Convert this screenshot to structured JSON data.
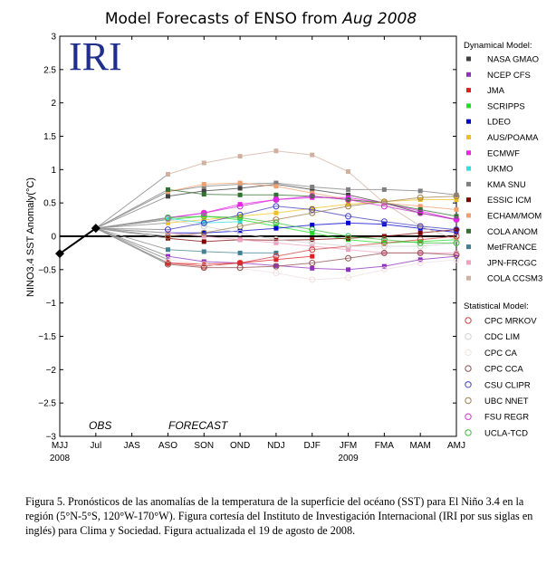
{
  "chart_data": {
    "type": "line",
    "title": "Model Forecasts of ENSO from",
    "title_month": "Aug 2008",
    "ylabel": "NINO3.4 SST Anomaly(°C)",
    "ylim": [
      -3,
      3
    ],
    "yticks": [
      "−3",
      "−2.5",
      "−2",
      "−1.5",
      "−1",
      "−0.5",
      "0",
      "0.5",
      "1",
      "1.5",
      "2",
      "2.5",
      "3"
    ],
    "categories": [
      "MJJ",
      "Jul",
      "JAS",
      "ASO",
      "SON",
      "OND",
      "NDJ",
      "DJF",
      "JFM",
      "FMA",
      "MAM",
      "AMJ"
    ],
    "year_labels": [
      {
        "label": "2008",
        "at": 0
      },
      {
        "label": "2009",
        "at": 8
      }
    ],
    "obs_label": "OBS",
    "forecast_label": "FORECAST",
    "grid": false,
    "legend_position": "right",
    "observed": [
      -0.26,
      0.12
    ],
    "dynamical_title": "Dynamical Model:",
    "statistical_title": "Statistical Model:",
    "dynamical": [
      {
        "name": "NASA GMAO",
        "color": "#404040",
        "values": [
          0.6,
          0.68,
          0.72,
          0.78,
          0.7,
          0.62,
          0.5,
          0.35,
          0.25
        ]
      },
      {
        "name": "NCEP CFS",
        "color": "#9030c0",
        "values": [
          -0.3,
          -0.38,
          -0.4,
          -0.44,
          -0.48,
          -0.5,
          -0.45,
          -0.35,
          -0.3
        ]
      },
      {
        "name": "JMA",
        "color": "#e02020",
        "values": [
          -0.4,
          -0.42,
          -0.4,
          -0.35,
          -0.3,
          null,
          null,
          null,
          null
        ]
      },
      {
        "name": "SCRIPPS",
        "color": "#20e020",
        "values": [
          0.25,
          0.3,
          0.25,
          0.15,
          0.05,
          -0.05,
          -0.1,
          -0.08,
          -0.05
        ]
      },
      {
        "name": "LDEO",
        "color": "#0000d0",
        "values": [
          0.05,
          0.05,
          0.08,
          0.12,
          0.17,
          0.2,
          0.18,
          0.12,
          0.06
        ]
      },
      {
        "name": "AUS/POAMA",
        "color": "#f0c020",
        "values": [
          0.2,
          0.25,
          0.3,
          0.35,
          0.42,
          0.48,
          0.52,
          0.55,
          0.55
        ]
      },
      {
        "name": "ECMWF",
        "color": "#f020f0",
        "values": [
          0.28,
          0.35,
          0.48,
          0.55,
          0.58,
          0.58,
          0.5,
          0.38,
          0.25
        ]
      },
      {
        "name": "UKMO",
        "color": "#30e0e0",
        "values": [
          0.27,
          0.2,
          0.22,
          null,
          null,
          null,
          null,
          null,
          null
        ]
      },
      {
        "name": "KMA SNU",
        "color": "#808080",
        "values": [
          0.67,
          0.75,
          0.78,
          0.8,
          0.74,
          0.7,
          0.7,
          0.68,
          0.62
        ]
      },
      {
        "name": "ESSIC ICM",
        "color": "#800000",
        "values": [
          -0.03,
          -0.08,
          -0.05,
          -0.06,
          -0.05,
          -0.03,
          0.0,
          0.05,
          0.1
        ]
      },
      {
        "name": "ECHAM/MOM",
        "color": "#f0a070",
        "values": [
          0.67,
          0.78,
          0.8,
          0.75,
          0.65,
          0.55,
          0.5,
          0.45,
          0.4
        ]
      },
      {
        "name": "COLA ANOM",
        "color": "#307030",
        "values": [
          0.7,
          0.63,
          0.62,
          0.62,
          0.6,
          0.55,
          0.5,
          0.4,
          0.3
        ]
      },
      {
        "name": "MetFRANCE",
        "color": "#408090",
        "values": [
          -0.2,
          -0.23,
          -0.25,
          -0.25,
          null,
          null,
          null,
          null,
          null
        ]
      },
      {
        "name": "JPN-FRCGC",
        "color": "#f0a0c0",
        "values": [
          0.05,
          0.0,
          -0.05,
          -0.1,
          -0.15,
          -0.2,
          -0.25,
          -0.25,
          -0.25
        ]
      },
      {
        "name": "COLA CCSM3",
        "color": "#d0b0a0",
        "values": [
          0.93,
          1.1,
          1.2,
          1.28,
          1.22,
          0.97,
          0.5,
          0.15,
          -0.05
        ]
      }
    ],
    "statistical": [
      {
        "name": "CPC MRKOV",
        "color": "#d04040",
        "values": [
          -0.4,
          -0.45,
          -0.4,
          -0.3,
          -0.2,
          -0.15,
          -0.1,
          -0.05,
          0.0
        ]
      },
      {
        "name": "CDC LIM",
        "color": "#d0d0d0",
        "values": [
          0.25,
          0.15,
          0.05,
          -0.05,
          -0.1,
          -0.15,
          -0.15,
          -0.15,
          -0.1
        ]
      },
      {
        "name": "CPC CA",
        "color": "#f0e0e0",
        "values": [
          -0.35,
          -0.42,
          -0.48,
          -0.55,
          -0.65,
          -0.62,
          -0.5,
          -0.4,
          -0.35
        ]
      },
      {
        "name": "CPC CCA",
        "color": "#905050",
        "values": [
          -0.42,
          -0.47,
          -0.47,
          -0.45,
          -0.4,
          -0.33,
          -0.25,
          -0.25,
          -0.28
        ]
      },
      {
        "name": "CSU CLIPR",
        "color": "#4040c0",
        "values": [
          0.1,
          0.2,
          0.32,
          0.45,
          0.4,
          0.3,
          0.22,
          0.15,
          0.1
        ]
      },
      {
        "name": "UBC NNET",
        "color": "#a08050",
        "values": [
          0.0,
          0.05,
          0.15,
          0.25,
          0.35,
          0.45,
          0.52,
          0.58,
          0.6
        ]
      },
      {
        "name": "FSU REGR",
        "color": "#d030d0",
        "values": [
          0.27,
          0.35,
          0.45,
          0.55,
          0.6,
          0.55,
          0.45,
          0.35,
          0.25
        ]
      },
      {
        "name": "UCLA-TCD",
        "color": "#40c040",
        "values": [
          0.28,
          0.3,
          0.28,
          0.2,
          0.1,
          0.0,
          -0.05,
          -0.1,
          -0.1
        ]
      }
    ]
  },
  "logo_text": "IRI",
  "caption": "Figura 5. Pronósticos de las anomalías de la temperatura de la superficie del océano (SST) para El Niño 3.4 en la región (5°N-5°S, 120°W-170°W). Figura cortesía del Instituto de Investigación Internacional (IRI por sus siglas en inglés) para Clima y Sociedad. Figura actualizada el 19 de agosto de 2008."
}
